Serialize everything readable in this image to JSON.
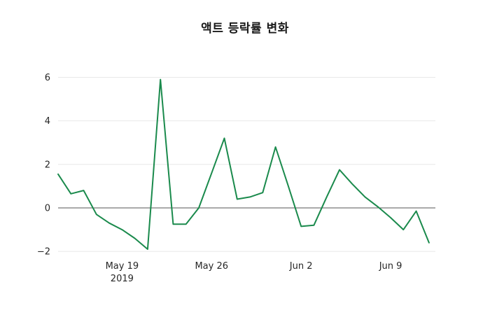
{
  "page": {
    "background": "#ffffff"
  },
  "chart_data": {
    "type": "line",
    "title": "액트 등락률 변화",
    "xlabel": "",
    "ylabel": "",
    "grid": true,
    "legend": false,
    "zero_line": true,
    "y_ticks": [
      -2,
      0,
      2,
      4,
      6
    ],
    "ylim": [
      -2.35,
      6.5
    ],
    "xlim_days": [
      0,
      29.5
    ],
    "x_ticks": [
      {
        "date": "2019-05-19",
        "label": "May 19",
        "sublabel": "2019"
      },
      {
        "date": "2019-05-26",
        "label": "May 26",
        "sublabel": ""
      },
      {
        "date": "2019-06-02",
        "label": "Jun 2",
        "sublabel": ""
      },
      {
        "date": "2019-06-09",
        "label": "Jun 9",
        "sublabel": ""
      }
    ],
    "series": [
      {
        "name": "등락률",
        "color": "#1a8a4c",
        "x": [
          "2019-05-14",
          "2019-05-15",
          "2019-05-16",
          "2019-05-17",
          "2019-05-18",
          "2019-05-19",
          "2019-05-20",
          "2019-05-21",
          "2019-05-22",
          "2019-05-23",
          "2019-05-24",
          "2019-05-25",
          "2019-05-26",
          "2019-05-27",
          "2019-05-28",
          "2019-05-29",
          "2019-05-30",
          "2019-05-31",
          "2019-06-01",
          "2019-06-02",
          "2019-06-03",
          "2019-06-04",
          "2019-06-05",
          "2019-06-06",
          "2019-06-07",
          "2019-06-08",
          "2019-06-09",
          "2019-06-10",
          "2019-06-11",
          "2019-06-12"
        ],
        "values": [
          1.55,
          0.65,
          0.8,
          -0.3,
          -0.7,
          -1.0,
          -1.4,
          -1.9,
          5.9,
          -0.75,
          -0.75,
          0.0,
          1.6,
          3.2,
          0.4,
          0.5,
          0.7,
          2.8,
          1.0,
          -0.85,
          -0.8,
          0.5,
          1.75,
          1.1,
          0.5,
          0.05,
          -0.45,
          -1.0,
          -0.15,
          -1.6
        ]
      }
    ],
    "colors": {
      "line": "#1a8a4c",
      "grid": "#e8e8e8",
      "zero_line": "#555555",
      "text": "#262626",
      "title": "#1a1a1a"
    }
  }
}
